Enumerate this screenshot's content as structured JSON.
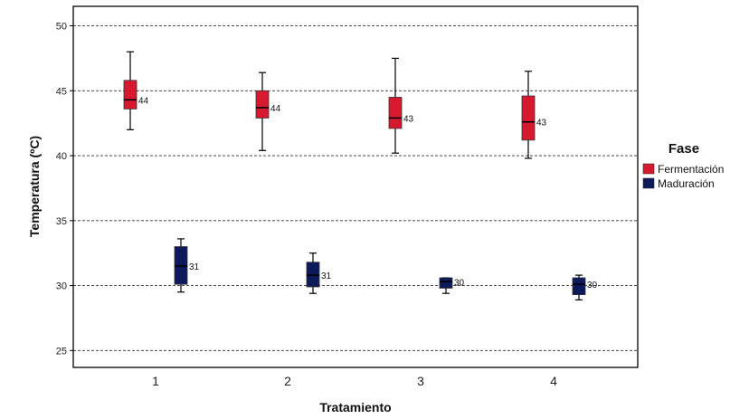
{
  "chart_data": {
    "type": "boxplot",
    "xlabel": "Tratamiento",
    "ylabel": "Temperatura (ºC)",
    "categories": [
      "1",
      "2",
      "3",
      "4"
    ],
    "ylim": [
      23.7,
      51.5
    ],
    "yticks": [
      25,
      30,
      35,
      40,
      45,
      50
    ],
    "grid": "horizontal dashed",
    "legend": {
      "title": "Fase",
      "position": "right"
    },
    "series": [
      {
        "name": "Fermentación",
        "color": "#d7192f",
        "boxes": [
          {
            "category": "1",
            "min": 42.0,
            "q1": 43.6,
            "median": 44.3,
            "q3": 45.8,
            "max": 48.0,
            "label": "44"
          },
          {
            "category": "2",
            "min": 40.4,
            "q1": 42.9,
            "median": 43.7,
            "q3": 45.0,
            "max": 46.4,
            "label": "44"
          },
          {
            "category": "3",
            "min": 40.2,
            "q1": 42.1,
            "median": 42.9,
            "q3": 44.5,
            "max": 47.5,
            "label": "43"
          },
          {
            "category": "4",
            "min": 39.8,
            "q1": 41.2,
            "median": 42.6,
            "q3": 44.6,
            "max": 46.5,
            "label": "43"
          }
        ]
      },
      {
        "name": "Maduración",
        "color": "#0c1a5c",
        "boxes": [
          {
            "category": "1",
            "min": 29.5,
            "q1": 30.1,
            "median": 31.5,
            "q3": 33.0,
            "max": 33.6,
            "label": "31"
          },
          {
            "category": "2",
            "min": 29.4,
            "q1": 29.9,
            "median": 30.8,
            "q3": 31.8,
            "max": 32.5,
            "label": "31"
          },
          {
            "category": "3",
            "min": 29.4,
            "q1": 29.8,
            "median": 30.3,
            "q3": 30.6,
            "max": 30.6,
            "label": "30"
          },
          {
            "category": "4",
            "min": 28.9,
            "q1": 29.3,
            "median": 30.1,
            "q3": 30.6,
            "max": 30.8,
            "label": "30"
          }
        ]
      }
    ]
  }
}
